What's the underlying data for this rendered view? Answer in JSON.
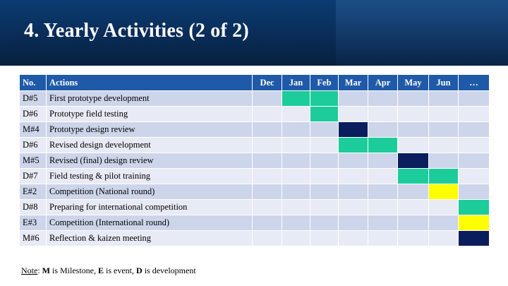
{
  "title": "4. Yearly Activities (2 of 2)",
  "table": {
    "headers": {
      "no": "No.",
      "actions": "Actions"
    },
    "months": [
      "Dec",
      "Jan",
      "Feb",
      "Mar",
      "Apr",
      "May",
      "Jun",
      "…"
    ],
    "rows": [
      {
        "no": "D#5",
        "action": "First prototype development",
        "type": "development",
        "active": [
          "Jan",
          "Feb"
        ]
      },
      {
        "no": "D#6",
        "action": "Prototype field testing",
        "type": "development",
        "active": [
          "Feb"
        ]
      },
      {
        "no": "M#4",
        "action": "Prototype design review",
        "type": "milestone",
        "active": [
          "Mar"
        ]
      },
      {
        "no": "D#6",
        "action": "Revised design development",
        "type": "development",
        "active": [
          "Mar",
          "Apr"
        ]
      },
      {
        "no": "M#5",
        "action": "Revised (final) design review",
        "type": "milestone",
        "active": [
          "May"
        ]
      },
      {
        "no": "D#7",
        "action": "Field testing & pilot training",
        "type": "development",
        "active": [
          "May",
          "Jun"
        ]
      },
      {
        "no": "E#2",
        "action": "Competition (National round)",
        "type": "event",
        "active": [
          "Jun"
        ]
      },
      {
        "no": "D#8",
        "action": "Preparing for international competition",
        "type": "development",
        "active": [
          "…"
        ]
      },
      {
        "no": "E#3",
        "action": "Competition (International round)",
        "type": "event",
        "active": [
          "…"
        ]
      },
      {
        "no": "M#6",
        "action": "Reflection & kaizen meeting",
        "type": "milestone",
        "active": [
          "…"
        ]
      }
    ],
    "colors": {
      "development": "#1ccc9a",
      "milestone": "#0a1e5e",
      "event": "#ffff00",
      "header": "#1e5aa8"
    }
  },
  "note": {
    "label": "Note",
    "sep": ": ",
    "m": "M",
    "m_text": " is Milestone, ",
    "e": "E",
    "e_text": " is event, ",
    "d": "D",
    "d_text": " is development"
  }
}
